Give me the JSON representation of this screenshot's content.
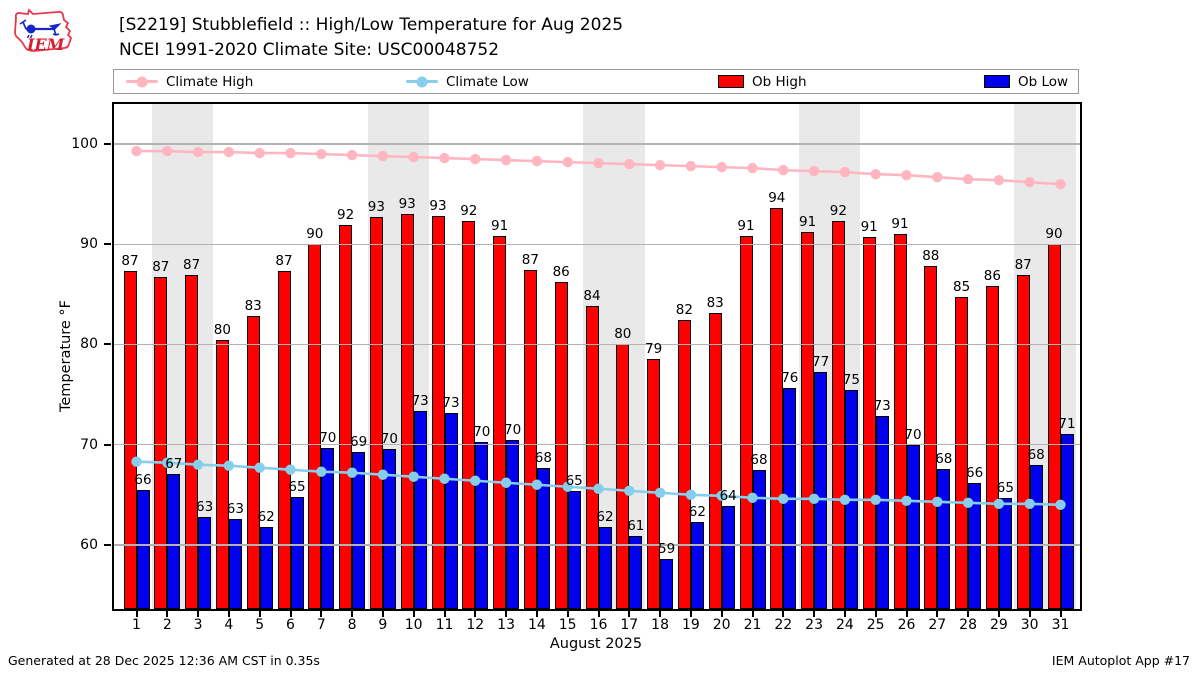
{
  "header": {
    "title_line1": "[S2219] Stubblefield :: High/Low Temperature for Aug 2025",
    "title_line2": "NCEI 1991-2020 Climate Site: USC00048752",
    "logo_text": "IEM"
  },
  "legend": {
    "items": [
      {
        "label": "Climate High",
        "type": "line",
        "color": "#ffb6c1"
      },
      {
        "label": "Climate Low",
        "type": "line",
        "color": "#87ceeb"
      },
      {
        "label": "Ob High",
        "type": "rect",
        "color": "#ff0000"
      },
      {
        "label": "Ob Low",
        "type": "rect",
        "color": "#0000ee"
      }
    ]
  },
  "chart_data": {
    "type": "bar",
    "x": [
      1,
      2,
      3,
      4,
      5,
      6,
      7,
      8,
      9,
      10,
      11,
      12,
      13,
      14,
      15,
      16,
      17,
      18,
      19,
      20,
      21,
      22,
      23,
      24,
      25,
      26,
      27,
      28,
      29,
      30,
      31
    ],
    "series": [
      {
        "name": "Ob High",
        "type": "bar",
        "color": "#ff0000",
        "values": [
          87.3,
          86.7,
          86.9,
          80.4,
          82.8,
          87.3,
          90.0,
          91.9,
          92.7,
          93.0,
          92.8,
          92.3,
          90.8,
          87.4,
          86.2,
          83.8,
          80.0,
          78.6,
          82.4,
          83.1,
          90.8,
          93.6,
          91.2,
          92.3,
          90.7,
          91.0,
          87.8,
          84.7,
          85.8,
          86.9,
          90.0
        ],
        "labels": [
          87,
          87,
          87,
          80,
          83,
          87,
          90,
          92,
          93,
          93,
          93,
          92,
          91,
          87,
          86,
          84,
          80,
          79,
          82,
          83,
          91,
          94,
          91,
          92,
          91,
          91,
          88,
          85,
          86,
          87,
          90
        ]
      },
      {
        "name": "Ob Low",
        "type": "bar",
        "color": "#0000ee",
        "values": [
          65.5,
          67.1,
          62.8,
          62.6,
          61.8,
          64.8,
          69.7,
          69.3,
          69.6,
          73.4,
          73.2,
          70.3,
          70.5,
          67.7,
          65.4,
          61.8,
          60.9,
          58.6,
          62.3,
          63.9,
          67.5,
          75.7,
          77.3,
          75.5,
          72.9,
          70.0,
          67.6,
          66.2,
          64.7,
          68.0,
          71.1
        ],
        "labels": [
          66,
          67,
          63,
          63,
          62,
          65,
          70,
          69,
          70,
          73,
          73,
          70,
          70,
          68,
          65,
          62,
          61,
          59,
          62,
          64,
          68,
          76,
          77,
          75,
          73,
          70,
          68,
          66,
          65,
          68,
          71
        ]
      },
      {
        "name": "Climate High",
        "type": "line",
        "color": "#ffb6c1",
        "values": [
          99.3,
          99.3,
          99.2,
          99.2,
          99.1,
          99.1,
          99.0,
          98.9,
          98.8,
          98.7,
          98.6,
          98.5,
          98.4,
          98.3,
          98.2,
          98.1,
          98.0,
          97.9,
          97.8,
          97.7,
          97.6,
          97.4,
          97.3,
          97.2,
          97.0,
          96.9,
          96.7,
          96.5,
          96.4,
          96.2,
          96.0
        ]
      },
      {
        "name": "Climate Low",
        "type": "line",
        "color": "#87ceeb",
        "values": [
          68.3,
          68.2,
          68.0,
          67.9,
          67.7,
          67.5,
          67.3,
          67.2,
          67.0,
          66.8,
          66.6,
          66.4,
          66.2,
          66.0,
          65.8,
          65.6,
          65.4,
          65.2,
          65.0,
          64.9,
          64.7,
          64.6,
          64.6,
          64.5,
          64.5,
          64.4,
          64.3,
          64.2,
          64.1,
          64.1,
          64.0
        ]
      }
    ],
    "xlabel": "August 2025",
    "ylabel": "Temperature °F",
    "yticks": [
      60,
      70,
      80,
      90,
      100
    ],
    "ylim": [
      53.6,
      104.0
    ],
    "grid_on": true,
    "grid_color": "#b3b3b3",
    "weekend_bands": [
      [
        2,
        3
      ],
      [
        9,
        10
      ],
      [
        16,
        17
      ],
      [
        23,
        24
      ],
      [
        30,
        31
      ]
    ],
    "band_color": "#e9e9e9",
    "legend_position": "top"
  },
  "footer": {
    "left": "Generated at 28 Dec 2025 12:36 AM CST in 0.35s",
    "right": "IEM Autoplot App #17"
  }
}
